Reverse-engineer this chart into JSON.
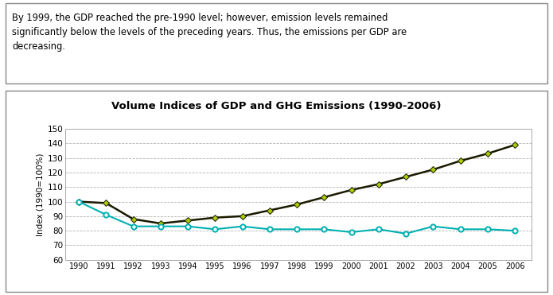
{
  "title": "Volume Indices of GDP and GHG Emissions (1990-2006)",
  "ylabel": "Index (1990=100%)",
  "years": [
    1990,
    1991,
    1992,
    1993,
    1994,
    1995,
    1996,
    1997,
    1998,
    1999,
    2000,
    2001,
    2002,
    2003,
    2004,
    2005,
    2006
  ],
  "gdp": [
    100,
    99,
    88,
    85,
    87,
    89,
    90,
    94,
    98,
    103,
    108,
    112,
    117,
    122,
    128,
    133,
    139
  ],
  "ghg": [
    100,
    91,
    83,
    83,
    83,
    81,
    83,
    81,
    81,
    81,
    79,
    81,
    78,
    83,
    81,
    81,
    80
  ],
  "ylim": [
    60,
    150
  ],
  "yticks": [
    60,
    70,
    80,
    90,
    100,
    110,
    120,
    130,
    140,
    150
  ],
  "gdp_line_color": "#1a1a00",
  "gdp_marker_color": "#aacc00",
  "ghg_color": "#00b0b0",
  "text_line1": "By 1999, the GDP reached the pre-1990 level; however, emission levels remained",
  "text_line2": "significantly below the levels of the preceding years. Thus, the emissions per GDP are",
  "text_line3": "decreasing.",
  "background_color": "#ffffff",
  "grid_color": "#aaaaaa",
  "border_color": "#888888"
}
